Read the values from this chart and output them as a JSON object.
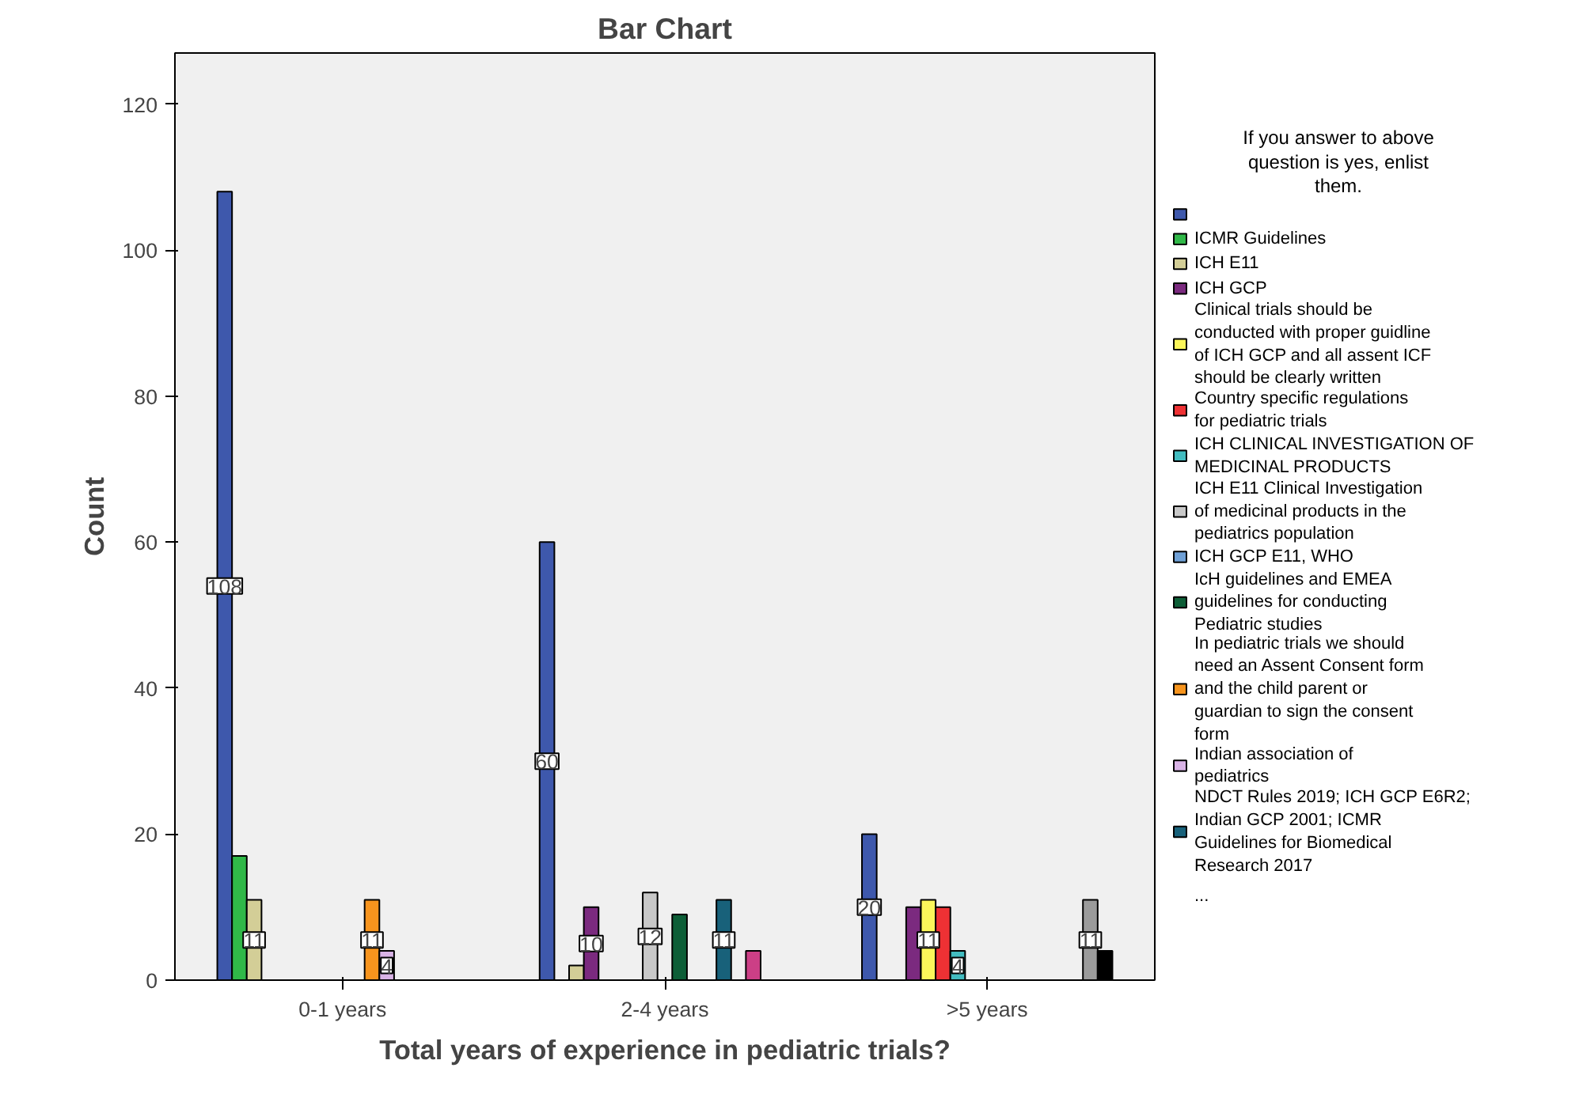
{
  "chart_data": {
    "type": "bar",
    "title": "Bar Chart",
    "xlabel": "Total years of experience in pediatric trials?",
    "ylabel": "Count",
    "legend_title": "If you answer to above question is yes, enlist them.",
    "annotations": [
      "..."
    ],
    "categories": [
      "0-1 years",
      "2-4 years",
      ">5 years"
    ],
    "ylim": [
      0,
      127
    ],
    "yticks": [
      0,
      20,
      40,
      60,
      80,
      100,
      120
    ],
    "grid": false,
    "legend": "right",
    "series": [
      {
        "color": "#3e58ac",
        "values": [
          108,
          60,
          20
        ],
        "value_labels": [
          "108",
          "60",
          "20"
        ]
      },
      {
        "name": "ICMR Guidelines",
        "color": "#30b848",
        "values": [
          17,
          null,
          null
        ]
      },
      {
        "name": "ICH E11",
        "color": "#d3ce97",
        "values": [
          11,
          2,
          null
        ],
        "value_labels": [
          "11",
          null,
          null
        ]
      },
      {
        "name": "ICH GCP",
        "color": "#7b2a7f",
        "values": [
          null,
          10,
          10
        ],
        "value_labels": [
          null,
          "10",
          null
        ]
      },
      {
        "name": "Clinical trials should be conducted with proper guidline of ICH GCP and all assent ICF should be clearly written",
        "color": "#fbf65a",
        "values": [
          null,
          null,
          11
        ],
        "value_labels": [
          null,
          null,
          "11"
        ]
      },
      {
        "name": "Country specific regulations for pediatric trials",
        "color": "#ee3134",
        "values": [
          null,
          null,
          10
        ]
      },
      {
        "name": "ICH CLINICAL INVESTIGATION OF MEDICINAL PRODUCTS",
        "color": "#42bcc0",
        "values": [
          null,
          null,
          4
        ],
        "value_labels": [
          null,
          null,
          "4"
        ]
      },
      {
        "name": "ICH E11 Clinical Investigation of medicinal products in the pediatrics population",
        "color": "#c8c8c8",
        "values": [
          null,
          12,
          null
        ],
        "value_labels": [
          null,
          "12",
          null
        ]
      },
      {
        "name": "ICH GCP E11, WHO",
        "color": "#6fa0d6",
        "values": [
          null,
          null,
          null
        ]
      },
      {
        "name": "IcH guidelines and EMEA guidelines for conducting Pediatric studies",
        "color": "#0d5e37",
        "values": [
          null,
          9,
          null
        ]
      },
      {
        "name": "In pediatric trials we should need an Assent Consent form and the child parent or guardian to sign the consent form",
        "color": "#f7941d",
        "values": [
          11,
          null,
          null
        ],
        "value_labels": [
          "11",
          null,
          null
        ]
      },
      {
        "name": "Indian association of pediatrics",
        "color": "#d9b3e6",
        "values": [
          4,
          null,
          null
        ],
        "value_labels": [
          "4",
          null,
          null
        ]
      },
      {
        "name": "NDCT Rules 2019; ICH GCP E6R2; Indian GCP 2001; ICMR Guidelines for Biomedical Research 2017",
        "color": "#18617a",
        "values": [
          null,
          11,
          null
        ],
        "value_labels": [
          null,
          "11",
          null
        ]
      },
      {
        "color": "#e0e0e0",
        "values": [
          null,
          null,
          null
        ]
      },
      {
        "color": "#cc3f86",
        "values": [
          null,
          4,
          null
        ]
      },
      {
        "color": "#9b9b9b",
        "values": [
          null,
          null,
          11
        ],
        "value_labels": [
          null,
          null,
          "11"
        ]
      },
      {
        "color": "#000000",
        "values": [
          null,
          null,
          4
        ]
      }
    ]
  }
}
